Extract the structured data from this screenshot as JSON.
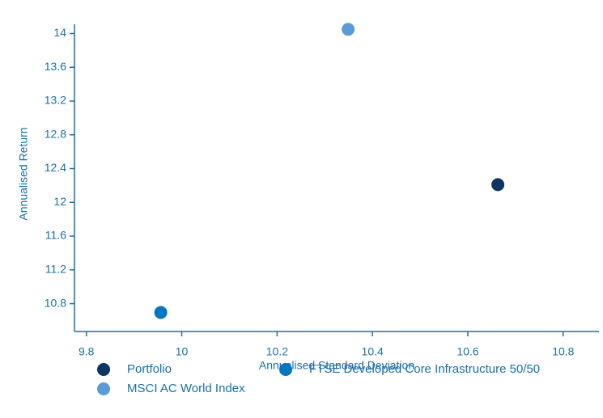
{
  "chart_data": {
    "type": "scatter",
    "x_label": "Annualised Standard Deviation",
    "y_label": "Annualised Return",
    "series": [
      {
        "name": "Portfolio",
        "color": "#0d3560",
        "x": [
          10.663
        ],
        "values": [
          12.21
        ]
      },
      {
        "name": "FTSE Developed Core Infrastructure 50/50",
        "color": "#0077c0",
        "x": [
          9.956
        ],
        "values": [
          10.695
        ]
      },
      {
        "name": "MSCI AC World Index",
        "color": "#5b9bd5",
        "x": [
          10.349
        ],
        "values": [
          14.05
        ]
      }
    ],
    "xlim": [
      9.775,
      10.875
    ],
    "xticks": [
      9.8,
      10,
      10.2,
      10.4,
      10.6,
      10.8
    ],
    "ylim": [
      10.47,
      14.11
    ],
    "yticks": [
      10.8,
      11.2,
      11.6,
      12,
      12.4,
      12.8,
      13.2,
      13.6,
      14
    ],
    "grid": false
  }
}
